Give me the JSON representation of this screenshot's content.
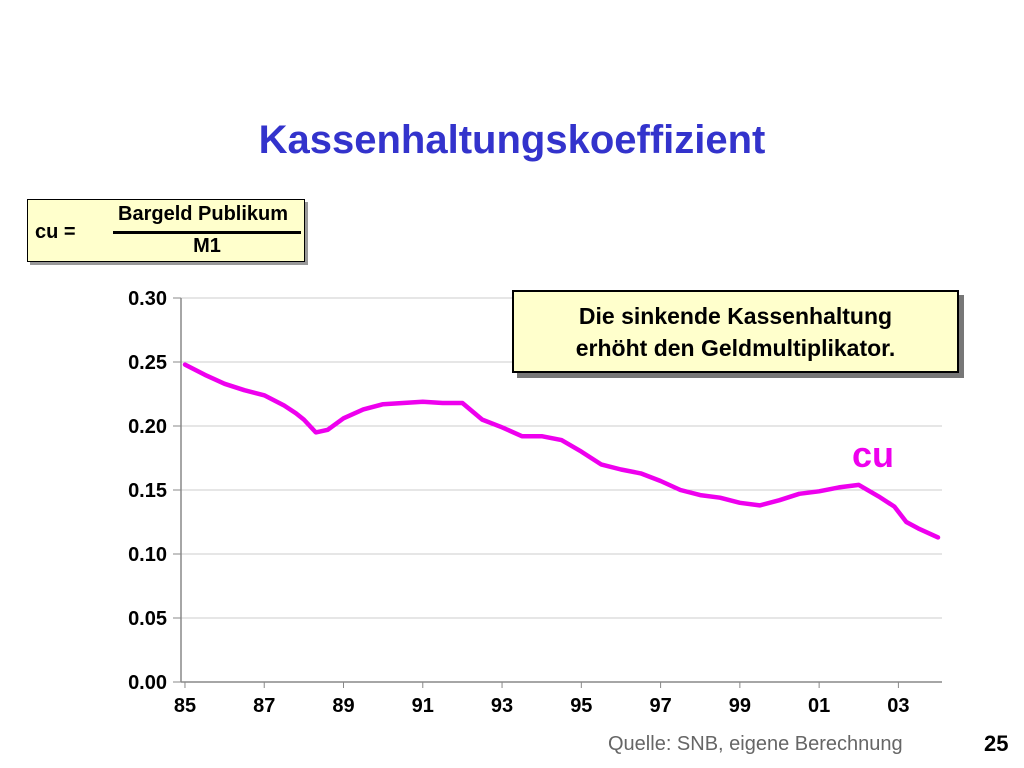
{
  "slide": {
    "title": "Kassenhaltungskoeffizient",
    "source": "Quelle: SNB, eigene Berechnung",
    "page_number": "25"
  },
  "formula": {
    "lhs": "cu =",
    "numerator": "Bargeld Publikum",
    "denominator": "M1"
  },
  "callout": {
    "line1": "Die sinkende Kassenhaltung",
    "line2": "erhöht den Geldmultiplikator."
  },
  "colors": {
    "title": "#3333cc",
    "series": "#ee00ee",
    "box_fill": "#ffffcc"
  },
  "chart_data": {
    "type": "line",
    "title": "",
    "xlabel": "",
    "ylabel": "",
    "xlim": [
      1984.9,
      2004.1
    ],
    "ylim": [
      0,
      0.3
    ],
    "y_ticks": [
      0.0,
      0.05,
      0.1,
      0.15,
      0.2,
      0.25,
      0.3
    ],
    "y_tick_labels": [
      "0.00",
      "0.05",
      "0.10",
      "0.15",
      "0.20",
      "0.25",
      "0.30"
    ],
    "x_ticks": [
      1985,
      1987,
      1989,
      1991,
      1993,
      1995,
      1997,
      1999,
      2001,
      2003
    ],
    "x_tick_labels": [
      "85",
      "87",
      "89",
      "91",
      "93",
      "95",
      "97",
      "99",
      "01",
      "03"
    ],
    "grid": true,
    "series": [
      {
        "name": "cu",
        "color": "#ee00ee",
        "x": [
          1985.0,
          1985.5,
          1986.0,
          1986.5,
          1987.0,
          1987.5,
          1987.8,
          1988.0,
          1988.3,
          1988.6,
          1989.0,
          1989.5,
          1990.0,
          1990.5,
          1991.0,
          1991.5,
          1992.0,
          1992.5,
          1993.0,
          1993.5,
          1994.0,
          1994.5,
          1995.0,
          1995.5,
          1996.0,
          1996.5,
          1997.0,
          1997.5,
          1998.0,
          1998.5,
          1999.0,
          1999.5,
          2000.0,
          2000.5,
          2001.0,
          2001.5,
          2002.0,
          2002.5,
          2002.9,
          2003.2,
          2003.5,
          2004.0
        ],
        "values": [
          0.248,
          0.24,
          0.233,
          0.228,
          0.224,
          0.216,
          0.21,
          0.205,
          0.195,
          0.197,
          0.206,
          0.213,
          0.217,
          0.218,
          0.219,
          0.218,
          0.218,
          0.205,
          0.199,
          0.192,
          0.192,
          0.189,
          0.18,
          0.17,
          0.166,
          0.163,
          0.157,
          0.15,
          0.146,
          0.144,
          0.14,
          0.138,
          0.142,
          0.147,
          0.149,
          0.152,
          0.154,
          0.145,
          0.137,
          0.125,
          0.12,
          0.113
        ]
      }
    ]
  }
}
